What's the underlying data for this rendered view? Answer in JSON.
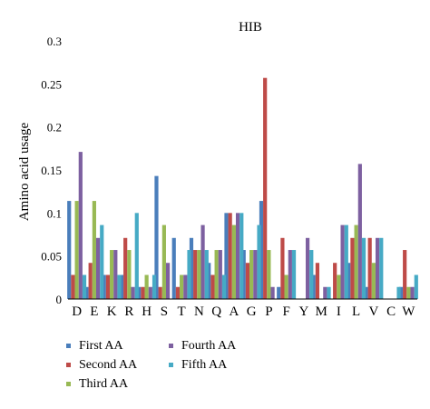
{
  "chart_data": {
    "type": "bar",
    "title": "HIB",
    "xlabel": "",
    "ylabel": "Amino acid usage",
    "ylim": [
      0,
      0.3
    ],
    "yticks": [
      "0",
      "0.05",
      "0.1",
      "0.15",
      "0.2",
      "0.25",
      "0.3"
    ],
    "grid": false,
    "legend_position": "bottom",
    "categories": [
      "D",
      "E",
      "K",
      "R",
      "H",
      "S",
      "T",
      "N",
      "Q",
      "A",
      "G",
      "P",
      "F",
      "Y",
      "M",
      "I",
      "L",
      "V",
      "C",
      "W"
    ],
    "series": [
      {
        "name": "First AA",
        "color": "#4a7ebb",
        "values": [
          0.114,
          0.014,
          0.028,
          0.028,
          0.014,
          0.143,
          0.071,
          0.071,
          0.042,
          0.1,
          0.057,
          0.114,
          0.014,
          0.0,
          0.028,
          0.0,
          0.042,
          0.014,
          0.0,
          0.014
        ]
      },
      {
        "name": "Second AA",
        "color": "#be4b48",
        "values": [
          0.028,
          0.042,
          0.028,
          0.071,
          0.014,
          0.014,
          0.014,
          0.057,
          0.028,
          0.1,
          0.042,
          0.257,
          0.071,
          0.0,
          0.042,
          0.042,
          0.071,
          0.071,
          0.0,
          0.057
        ]
      },
      {
        "name": "Third AA",
        "color": "#98b954",
        "values": [
          0.114,
          0.114,
          0.057,
          0.057,
          0.028,
          0.086,
          0.028,
          0.057,
          0.057,
          0.086,
          0.057,
          0.057,
          0.028,
          0.0,
          0.0,
          0.028,
          0.086,
          0.042,
          0.0,
          0.014
        ]
      },
      {
        "name": "Fourth AA",
        "color": "#7d60a0",
        "values": [
          0.171,
          0.071,
          0.057,
          0.014,
          0.014,
          0.042,
          0.028,
          0.086,
          0.057,
          0.1,
          0.057,
          0.014,
          0.057,
          0.071,
          0.014,
          0.086,
          0.157,
          0.071,
          0.0,
          0.014
        ]
      },
      {
        "name": "Fifth AA",
        "color": "#46aac5",
        "values": [
          0.028,
          0.086,
          0.028,
          0.1,
          0.028,
          0.0,
          0.057,
          0.057,
          0.028,
          0.1,
          0.086,
          0.0,
          0.057,
          0.057,
          0.014,
          0.086,
          0.071,
          0.071,
          0.014,
          0.028
        ]
      }
    ]
  }
}
